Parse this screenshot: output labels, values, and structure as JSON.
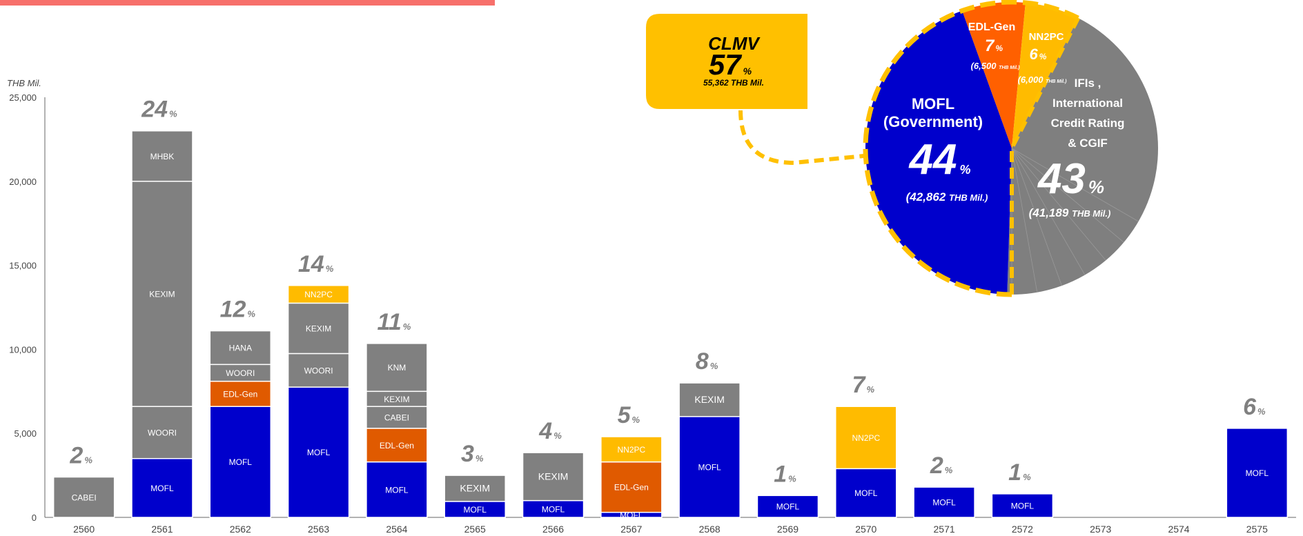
{
  "colors": {
    "MOFL": "#0000cc",
    "gray": "#808080",
    "EDL-Gen": "#e05a00",
    "NN2PC": "#ffbb00",
    "axis": "#666666",
    "pie_gray": "#7f7f7f",
    "pie_edl": "#ff6000",
    "dash": "#ffc000"
  },
  "chart_data": [
    {
      "type": "bar",
      "stacked": true,
      "ylabel": "THB Mil.",
      "ylim": [
        0,
        25000
      ],
      "yticks": [
        "0",
        "5,000",
        "10,000",
        "15,000",
        "20,000",
        "25,000"
      ],
      "ytick_values": [
        0,
        5000,
        10000,
        15000,
        20000,
        25000
      ],
      "categories": [
        "2560",
        "2561",
        "2562",
        "2563",
        "2564",
        "2565",
        "2566",
        "2567",
        "2568",
        "2569",
        "2570",
        "2571",
        "2572",
        "2573",
        "2574",
        "2575"
      ],
      "bars": [
        {
          "year": "2560",
          "pct": "2",
          "segments": [
            {
              "label": "CABEI",
              "value": 2400,
              "color": "gray"
            }
          ]
        },
        {
          "year": "2561",
          "pct": "24",
          "segments": [
            {
              "label": "MOFL",
              "value": 3500,
              "color": "MOFL"
            },
            {
              "label": "WOORI",
              "value": 3100,
              "color": "gray"
            },
            {
              "label": "KEXIM",
              "value": 13400,
              "color": "gray"
            },
            {
              "label": "MHBK",
              "value": 3000,
              "color": "gray"
            }
          ]
        },
        {
          "year": "2562",
          "pct": "12",
          "segments": [
            {
              "label": "MOFL",
              "value": 6600,
              "color": "MOFL"
            },
            {
              "label": "EDL-Gen",
              "value": 1500,
              "color": "EDL-Gen"
            },
            {
              "label": "WOORI",
              "value": 1000,
              "color": "gray"
            },
            {
              "label": "HANA",
              "value": 2000,
              "color": "gray"
            }
          ]
        },
        {
          "year": "2563",
          "pct": "14",
          "segments": [
            {
              "label": "MOFL",
              "value": 7750,
              "color": "MOFL"
            },
            {
              "label": "WOORI",
              "value": 2000,
              "color": "gray"
            },
            {
              "label": "KEXIM",
              "value": 3000,
              "color": "gray"
            },
            {
              "label": "NN2PC",
              "value": 1050,
              "color": "NN2PC"
            }
          ]
        },
        {
          "year": "2564",
          "pct": "11",
          "segments": [
            {
              "label": "MOFL",
              "value": 3300,
              "color": "MOFL"
            },
            {
              "label": "EDL-Gen",
              "value": 2000,
              "color": "EDL-Gen"
            },
            {
              "label": "CABEI",
              "value": 1300,
              "color": "gray"
            },
            {
              "label": "KEXIM",
              "value": 900,
              "color": "gray"
            },
            {
              "label": "KNM",
              "value": 2850,
              "color": "gray"
            }
          ]
        },
        {
          "year": "2565",
          "pct": "3",
          "segments": [
            {
              "label": "MOFL",
              "value": 950,
              "color": "MOFL"
            },
            {
              "label": "KEXIM",
              "value": 1550,
              "color": "gray"
            }
          ]
        },
        {
          "year": "2566",
          "pct": "4",
          "segments": [
            {
              "label": "MOFL",
              "value": 1000,
              "color": "MOFL"
            },
            {
              "label": "KEXIM",
              "value": 2850,
              "color": "gray"
            }
          ]
        },
        {
          "year": "2567",
          "pct": "5",
          "segments": [
            {
              "label": "MOFL",
              "value": 300,
              "color": "MOFL"
            },
            {
              "label": "EDL-Gen",
              "value": 3000,
              "color": "EDL-Gen"
            },
            {
              "label": "NN2PC",
              "value": 1500,
              "color": "NN2PC"
            }
          ]
        },
        {
          "year": "2568",
          "pct": "8",
          "segments": [
            {
              "label": "MOFL",
              "value": 6000,
              "color": "MOFL"
            },
            {
              "label": "KEXIM",
              "value": 2000,
              "color": "gray"
            }
          ]
        },
        {
          "year": "2569",
          "pct": "1",
          "segments": [
            {
              "label": "MOFL",
              "value": 1300,
              "color": "MOFL"
            }
          ]
        },
        {
          "year": "2570",
          "pct": "7",
          "segments": [
            {
              "label": "MOFL",
              "value": 2900,
              "color": "MOFL"
            },
            {
              "label": "NN2PC",
              "value": 3700,
              "color": "NN2PC"
            }
          ]
        },
        {
          "year": "2571",
          "pct": "2",
          "segments": [
            {
              "label": "MOFL",
              "value": 1800,
              "color": "MOFL"
            }
          ]
        },
        {
          "year": "2572",
          "pct": "1",
          "segments": [
            {
              "label": "MOFL",
              "value": 1400,
              "color": "MOFL"
            }
          ]
        },
        {
          "year": "2573",
          "pct": "",
          "segments": []
        },
        {
          "year": "2574",
          "pct": "",
          "segments": []
        },
        {
          "year": "2575",
          "pct": "6",
          "segments": [
            {
              "label": "MOFL",
              "value": 5300,
              "color": "MOFL"
            }
          ]
        }
      ]
    },
    {
      "type": "pie",
      "slices": [
        {
          "name": "MOFL\n(Government)",
          "pct": "44",
          "amount": "(42,862",
          "unit": "THB Mil.)",
          "value": 44,
          "color": "MOFL"
        },
        {
          "name": "EDL-Gen",
          "pct": "7",
          "amount": "(6,500",
          "unit": "THB Mil.)",
          "value": 7,
          "color": "pie_edl"
        },
        {
          "name": "NN2PC",
          "pct": "6",
          "amount": "(6,000",
          "unit": "THB Mil.)",
          "value": 6,
          "color": "NN2PC"
        },
        {
          "name": "IFIs ,\nInternational\nCredit Rating\n& CGIF",
          "pct": "43",
          "amount": "(41,189",
          "unit": "THB Mil.)",
          "value": 43,
          "color": "pie_gray"
        }
      ]
    }
  ],
  "percent_sign": "%",
  "callout": {
    "title": "CLMV",
    "pct": "57",
    "pct_sign": "%",
    "amount": "55,362 THB Mil."
  }
}
